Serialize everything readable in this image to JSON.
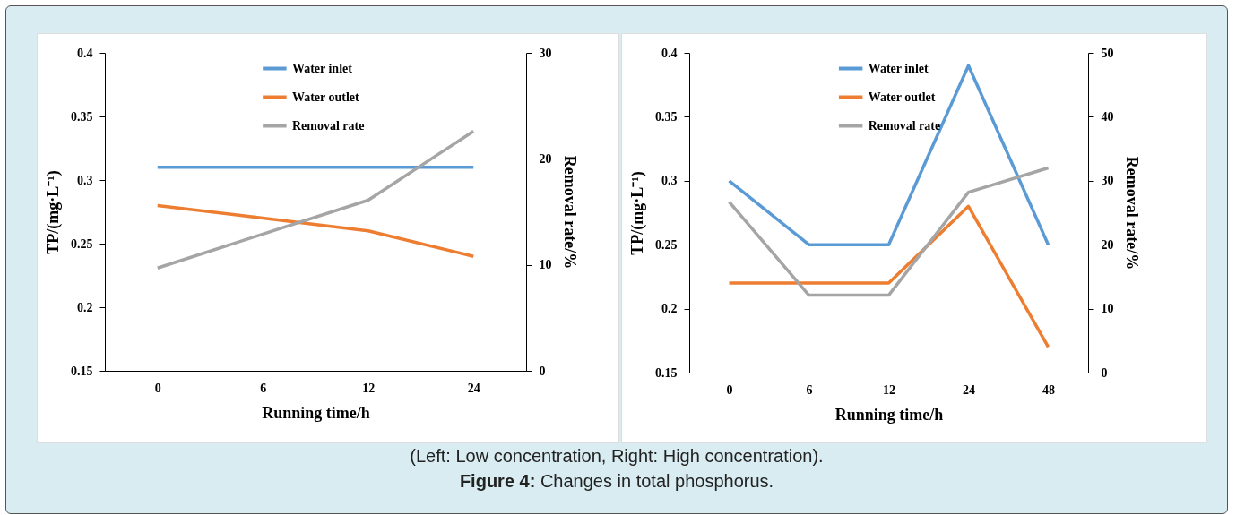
{
  "chart_data": [
    {
      "type": "line",
      "categories": [
        "0",
        "6",
        "12",
        "24"
      ],
      "xlabel": "Running time/h",
      "ylabel": "TP/(mg·L⁻¹)",
      "y2label": "Removal rate/%",
      "ylim": [
        0.15,
        0.4
      ],
      "yticks": [
        0.15,
        0.2,
        0.25,
        0.3,
        0.35,
        0.4
      ],
      "y2lim": [
        0,
        30
      ],
      "y2ticks": [
        0,
        10,
        20,
        30
      ],
      "legend": "top",
      "annotations": [
        "(Left: Low concentration, Right: High concentration).",
        "Figure 4: Changes in total phosphorus."
      ],
      "series": [
        {
          "name": "Water inlet",
          "color": "#5b9bd5",
          "values": [
            0.31,
            0.31,
            0.31,
            0.31
          ]
        },
        {
          "name": "Water outlet",
          "color": "#ed7d31",
          "values": [
            0.28,
            0.27,
            0.26,
            0.24
          ]
        },
        {
          "name": "Removal rate",
          "color": "#a5a5a5",
          "axis": "y2",
          "values": [
            9.7,
            12.9,
            16.1,
            22.6
          ]
        }
      ]
    },
    {
      "type": "line",
      "categories": [
        "0",
        "6",
        "12",
        "24",
        "48"
      ],
      "xlabel": "Running time/h",
      "ylabel": "TP/(mg·L⁻¹)",
      "y2label": "Removal rate/%",
      "ylim": [
        0.15,
        0.4
      ],
      "yticks": [
        0.15,
        0.2,
        0.25,
        0.3,
        0.35,
        0.4
      ],
      "y2lim": [
        0,
        50
      ],
      "y2ticks": [
        0,
        10,
        20,
        30,
        40,
        50
      ],
      "legend": "top",
      "series": [
        {
          "name": "Water inlet",
          "color": "#5b9bd5",
          "values": [
            0.3,
            0.25,
            0.25,
            0.39,
            0.25
          ]
        },
        {
          "name": "Water outlet",
          "color": "#ed7d31",
          "values": [
            0.22,
            0.22,
            0.22,
            0.28,
            0.17
          ]
        },
        {
          "name": "Removal rate",
          "color": "#a5a5a5",
          "axis": "y2",
          "values": [
            26.7,
            12.1,
            12.1,
            28.2,
            32
          ]
        }
      ]
    }
  ]
}
